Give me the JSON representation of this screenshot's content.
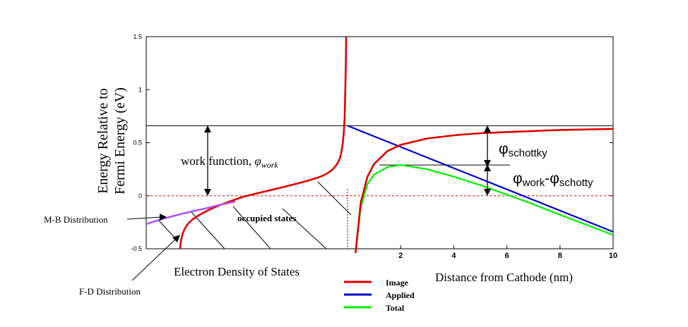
{
  "chart_data": {
    "type": "line",
    "ylabel_line1": "Energy Relative to",
    "ylabel_line2": "Fermi Energy (eV)",
    "ylim": [
      -0.5,
      1.5
    ],
    "yticks": [
      "1.5",
      "1",
      "0.5",
      "0",
      "-0.5"
    ],
    "left_panel": {
      "xlabel": "Electron Density of States",
      "fermi_level": 0,
      "work_function_level": 0.66,
      "annotations": {
        "work_function": "work function, ",
        "phi": "φ",
        "phi_sub": "work",
        "occupied_states": "occupied states",
        "mb": "M-B Distribution",
        "fd": "F-D Distribution"
      }
    },
    "right_panel": {
      "xlabel": "Distance from Cathode (nm)",
      "xlim": [
        0,
        10
      ],
      "xticks": [
        "2",
        "4",
        "6",
        "8",
        "10"
      ],
      "barrier_max_x": 2.0,
      "barrier_max_y": 0.29,
      "annotations": {
        "phi_schottky": "φ",
        "phi_schottky_sub": "schottky",
        "phi_diff": "φ",
        "phi_diff_sub1": "work",
        "phi_diff_mid": "-φ",
        "phi_diff_sub2": "schotty"
      },
      "series": [
        {
          "name": "Image",
          "color": "#dd0000",
          "x": [
            0.3,
            0.5,
            0.75,
            1,
            1.5,
            2,
            3,
            4,
            5,
            6,
            7,
            8,
            9,
            10
          ],
          "y": [
            -0.54,
            -0.06,
            0.18,
            0.3,
            0.42,
            0.48,
            0.54,
            0.57,
            0.59,
            0.6,
            0.61,
            0.62,
            0.625,
            0.63
          ]
        },
        {
          "name": "Applied",
          "color": "#0000cc",
          "x": [
            0,
            2,
            4,
            6,
            8,
            10
          ],
          "y": [
            0.66,
            0.46,
            0.26,
            0.06,
            -0.14,
            -0.34
          ]
        },
        {
          "name": "Total",
          "color": "#00ee00",
          "x": [
            0.3,
            0.5,
            0.75,
            1,
            1.5,
            2,
            3,
            4,
            5,
            6,
            7,
            8,
            9,
            10
          ],
          "y": [
            -0.54,
            -0.11,
            0.11,
            0.2,
            0.27,
            0.29,
            0.25,
            0.18,
            0.1,
            0.01,
            -0.08,
            -0.18,
            -0.275,
            -0.37
          ]
        }
      ]
    }
  }
}
